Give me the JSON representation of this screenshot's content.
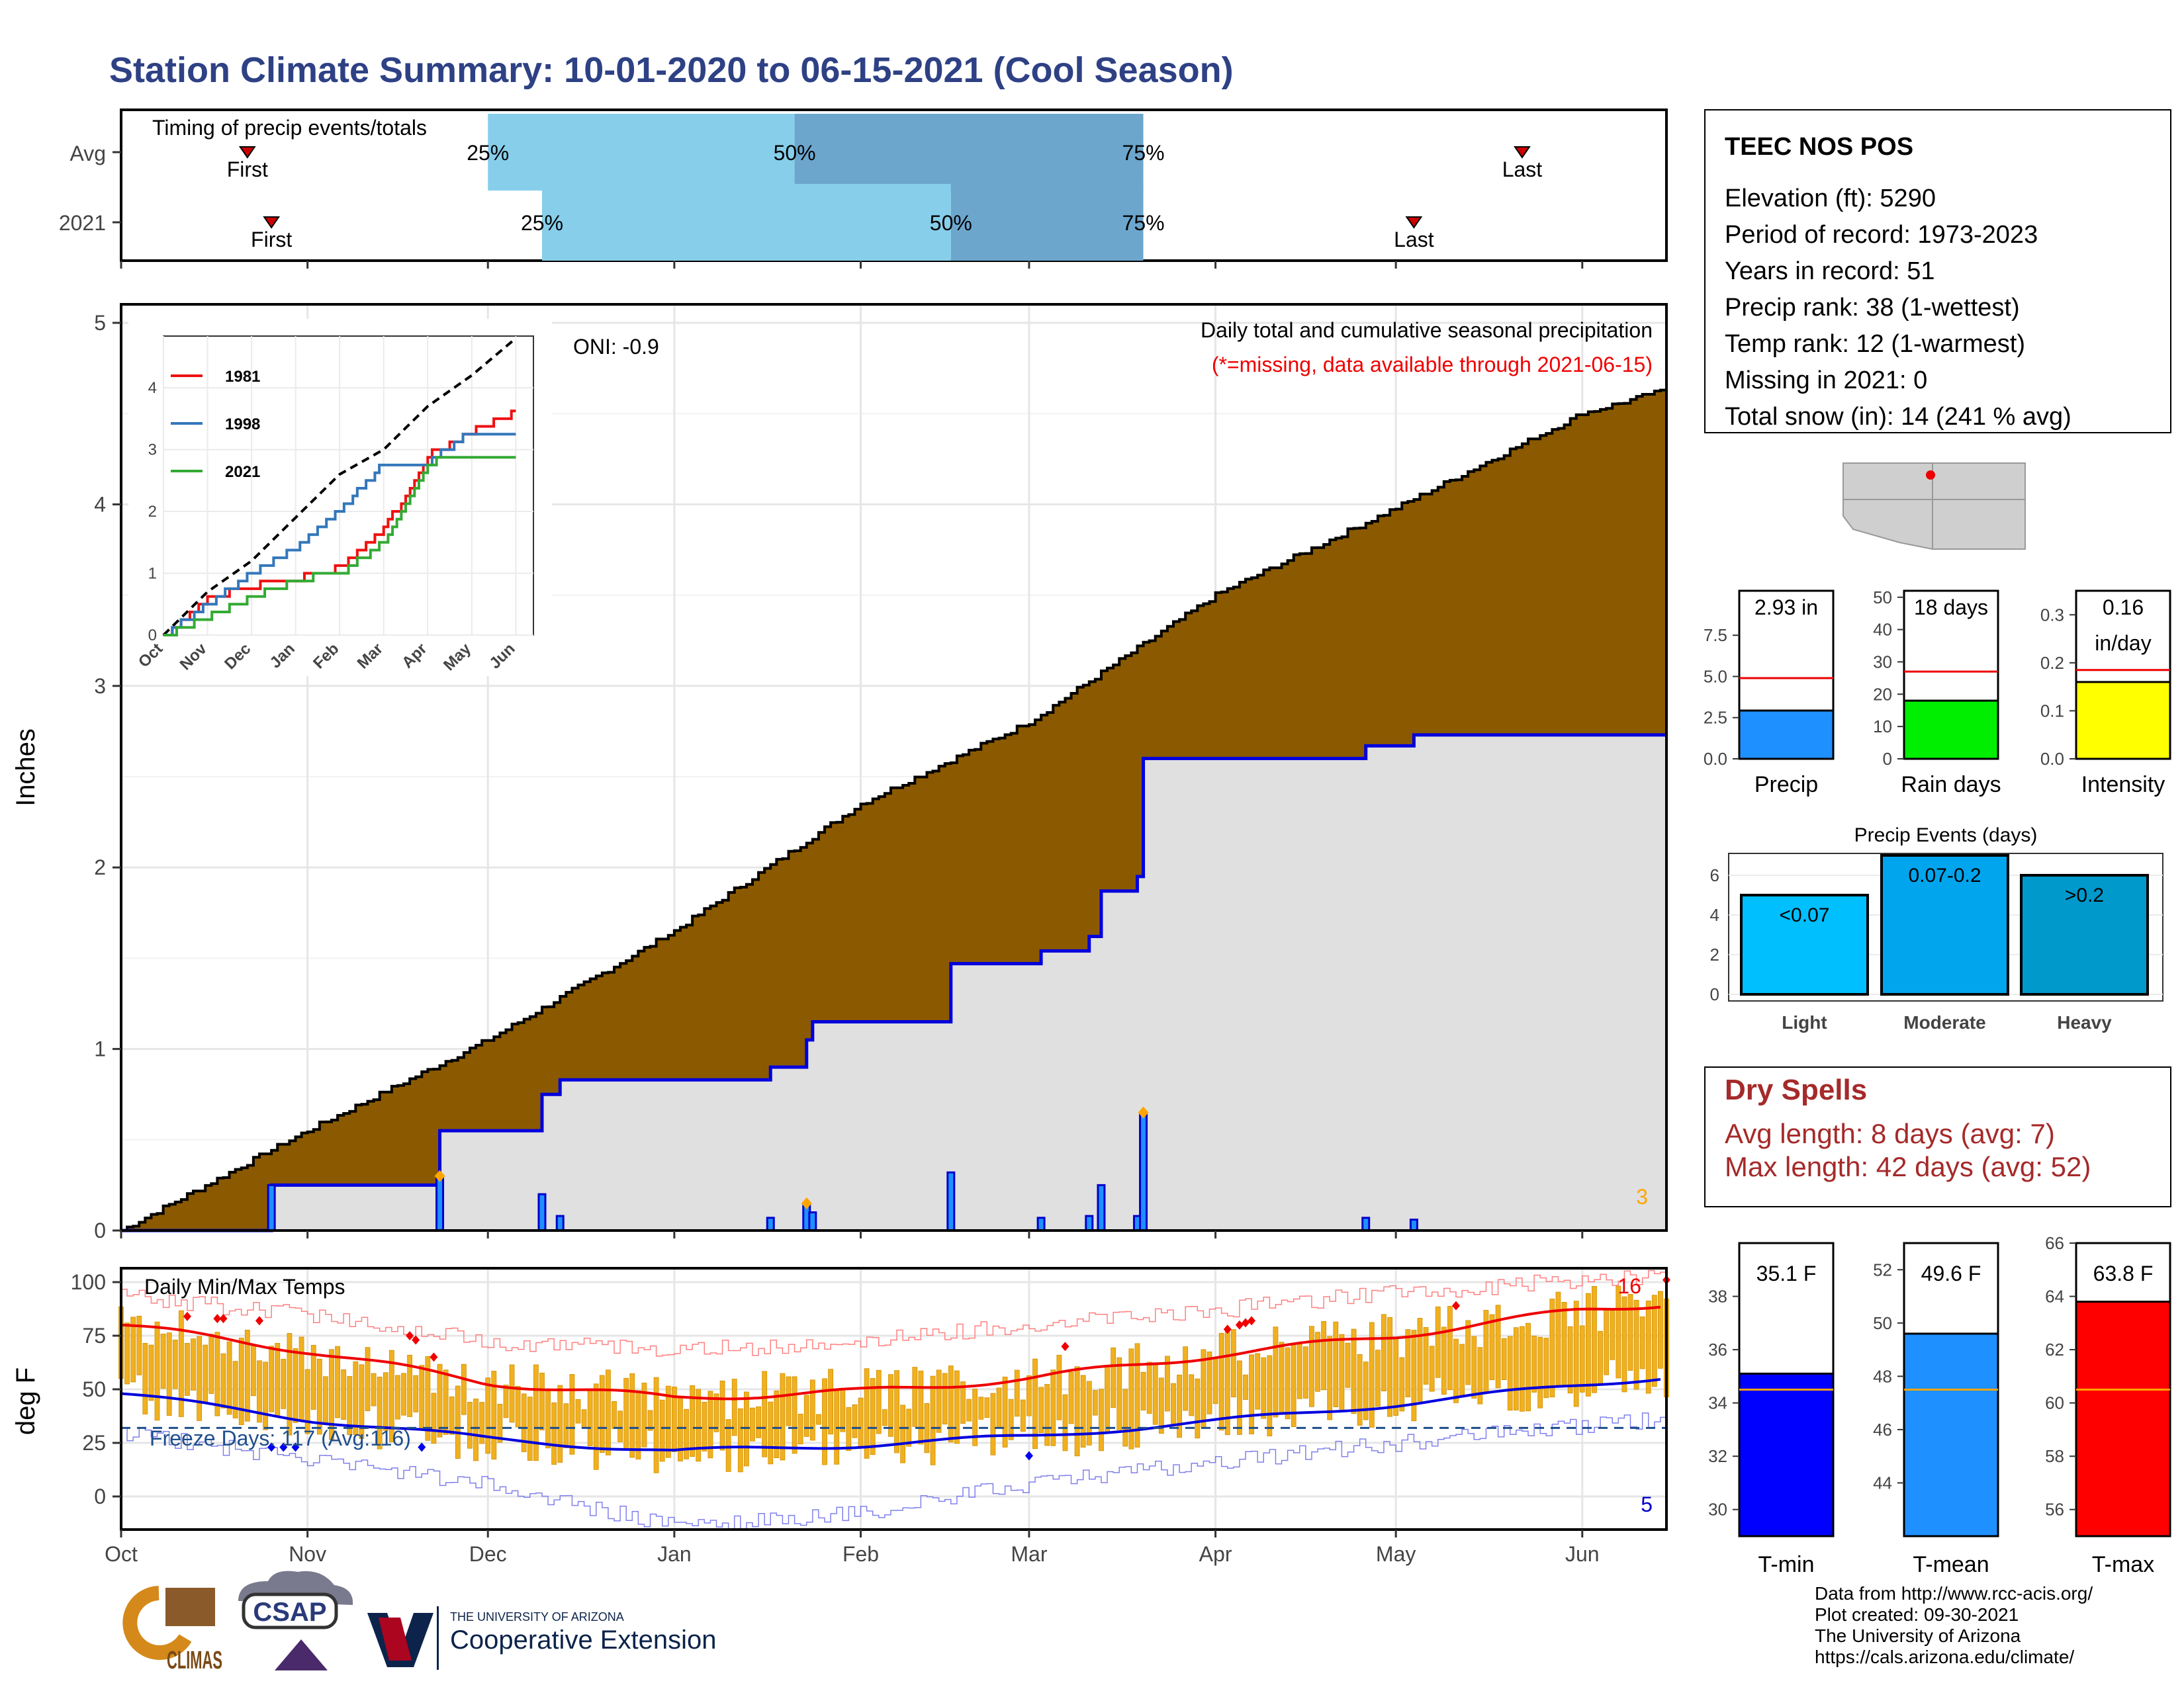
{
  "title": "Station Climate Summary: 10-01-2020 to 06-15-2021 (Cool Season)",
  "timing": {
    "label": "Timing of precip events/totals",
    "rows": [
      {
        "name": "Avg",
        "first_date": "2020-10-22",
        "p25_date": "2020-12-01",
        "p50_date": "2021-01-21",
        "p75_date": "2021-03-20",
        "last_date": "2021-05-22"
      },
      {
        "name": "2021",
        "first_date": "2020-10-26",
        "p25_date": "2020-12-10",
        "p50_date": "2021-02-16",
        "p75_date": "2021-03-20",
        "last_date": "2021-05-04"
      }
    ],
    "first_label": "First",
    "last_label": "Last",
    "p25_label": "25%",
    "p50_label": "50%",
    "p75_label": "75%"
  },
  "station": {
    "name": "TEEC NOS POS",
    "lines": [
      "Elevation (ft): 5290",
      "Period of record: 1973-2023",
      "Years in record: 51",
      "Precip rank: 38 (1-wettest)",
      "Temp rank: 12 (1-warmest)",
      "Missing in 2021: 0",
      "Total snow (in): 14 (241 % avg)"
    ]
  },
  "precip_panel": {
    "ylabel": "Inches",
    "subtitle": "Daily total and cumulative seasonal precipitation",
    "missing_note": "(*=missing, data available through 2021-06-15)",
    "oni": "ONI: -0.9",
    "corner_count": "3",
    "yticks": [
      "0",
      "1",
      "2",
      "3",
      "4",
      "5"
    ],
    "months": [
      "Oct",
      "Nov",
      "Dec",
      "Jan",
      "Feb",
      "Mar",
      "Apr",
      "May",
      "Jun"
    ]
  },
  "inset": {
    "yticks": [
      "0",
      "1",
      "2",
      "3",
      "4"
    ],
    "months": [
      "Oct",
      "Nov",
      "Dec",
      "Jan",
      "Feb",
      "Mar",
      "Apr",
      "May",
      "Jun"
    ],
    "legend": [
      {
        "name": "1981",
        "color": "#ee1111"
      },
      {
        "name": "1998",
        "color": "#3377bb"
      },
      {
        "name": "2021",
        "color": "#33aa33"
      }
    ]
  },
  "temp_panel": {
    "ylabel": "deg F",
    "label": "Daily Min/Max Temps",
    "freeze_label": "Freeze Days: 117 (Avg:116)",
    "top_count": "16",
    "bottom_count": "5",
    "yticks": [
      "0",
      "25",
      "50",
      "75",
      "100"
    ]
  },
  "summary_bars": [
    {
      "label": "Precip",
      "value_text": "2.93 in",
      "value": 2.93,
      "avg": 4.9,
      "ymax": 10.2,
      "yticks": [
        "0.0",
        "2.5",
        "5.0",
        "7.5"
      ],
      "tickvals": [
        0,
        2.5,
        5,
        7.5
      ],
      "color": "#1e90ff"
    },
    {
      "label": "Rain days",
      "value_text": "18 days",
      "value": 18,
      "avg": 27,
      "ymax": 52,
      "yticks": [
        "0",
        "10",
        "20",
        "30",
        "40",
        "50"
      ],
      "tickvals": [
        0,
        10,
        20,
        30,
        40,
        50
      ],
      "color": "#00ee00"
    },
    {
      "label": "Intensity",
      "value_text": "0.16",
      "value_text2": "in/day",
      "value": 0.16,
      "avg": 0.185,
      "ymax": 0.35,
      "yticks": [
        "0.0",
        "0.1",
        "0.2",
        "0.3"
      ],
      "tickvals": [
        0,
        0.1,
        0.2,
        0.3
      ],
      "color": "#ffff00"
    }
  ],
  "events": {
    "title": "Precip Events (days)",
    "bars": [
      {
        "label": "Light",
        "inner": "<0.07",
        "value": 5,
        "color": "#00bfff"
      },
      {
        "label": "Moderate",
        "inner": "0.07-0.2",
        "value": 7,
        "color": "#00a5ee"
      },
      {
        "label": "Heavy",
        "inner": ">0.2",
        "value": 6,
        "color": "#0099cc"
      }
    ],
    "yticks": [
      "0",
      "2",
      "4",
      "6"
    ]
  },
  "dry_spells": {
    "title": "Dry Spells",
    "avg_line": "Avg length: 8 days (avg: 7)",
    "max_line": "Max length: 42 days (avg: 52)"
  },
  "temp_bars": [
    {
      "label": "T-min",
      "value_text": "35.1 F",
      "value": 35.1,
      "avg": 34.5,
      "ymin": 29,
      "ymax": 40,
      "yticks": [
        "30",
        "32",
        "34",
        "36",
        "38"
      ],
      "tickvals": [
        30,
        32,
        34,
        36,
        38
      ],
      "color": "#0000ff"
    },
    {
      "label": "T-mean",
      "value_text": "49.6 F",
      "value": 49.6,
      "avg": 47.5,
      "ymin": 42,
      "ymax": 53,
      "yticks": [
        "44",
        "46",
        "48",
        "50",
        "52"
      ],
      "tickvals": [
        44,
        46,
        48,
        50,
        52
      ],
      "color": "#1e90ff"
    },
    {
      "label": "T-max",
      "value_text": "63.8 F",
      "value": 63.8,
      "avg": 60.5,
      "ymin": 55,
      "ymax": 66,
      "yticks": [
        "56",
        "58",
        "60",
        "62",
        "64",
        "66"
      ],
      "tickvals": [
        56,
        58,
        60,
        62,
        64,
        66
      ],
      "color": "#ff0000"
    }
  ],
  "footer": {
    "lines": [
      "Data from http://www.rcc-acis.org/",
      "Plot created: 09-30-2021",
      "The University of Arizona",
      "https://cals.arizona.edu/climate/"
    ],
    "logo1": "CLIMAS",
    "logo2": "CSAP",
    "ua_small": "THE UNIVERSITY OF ARIZONA",
    "ua_big": "Cooperative Extension"
  },
  "chart_data": [
    {
      "type": "area",
      "title": "Daily total and cumulative seasonal precipitation",
      "ylabel": "Inches",
      "ylim": [
        0,
        5
      ],
      "x": [
        "2020-10-01",
        "2020-11-01",
        "2020-12-01",
        "2021-01-01",
        "2021-02-01",
        "2021-03-01",
        "2021-04-01",
        "2021-05-01",
        "2021-06-01",
        "2021-06-15"
      ],
      "series": [
        {
          "name": "avg_cumulative",
          "values": [
            0.0,
            0.55,
            1.05,
            1.65,
            2.35,
            2.8,
            3.5,
            3.98,
            4.5,
            4.63
          ]
        },
        {
          "name": "2021_cumulative",
          "values": [
            0.0,
            0.25,
            0.55,
            0.85,
            1.05,
            1.53,
            2.8,
            2.88,
            2.93,
            2.93
          ]
        }
      ],
      "daily_2021": [
        {
          "date": "2020-10-26",
          "value": 0.25
        },
        {
          "date": "2020-11-23",
          "value": 0.3
        },
        {
          "date": "2020-12-10",
          "value": 0.2
        },
        {
          "date": "2020-12-13",
          "value": 0.08
        },
        {
          "date": "2021-01-17",
          "value": 0.07
        },
        {
          "date": "2021-01-23",
          "value": 0.15
        },
        {
          "date": "2021-01-24",
          "value": 0.1
        },
        {
          "date": "2021-02-16",
          "value": 0.32
        },
        {
          "date": "2021-03-03",
          "value": 0.07
        },
        {
          "date": "2021-03-11",
          "value": 0.08
        },
        {
          "date": "2021-03-13",
          "value": 0.25
        },
        {
          "date": "2021-03-19",
          "value": 0.08
        },
        {
          "date": "2021-03-20",
          "value": 0.65
        },
        {
          "date": "2021-04-26",
          "value": 0.07
        },
        {
          "date": "2021-05-04",
          "value": 0.06
        }
      ]
    },
    {
      "type": "line",
      "title": "",
      "ylim": [
        0,
        5
      ],
      "categories": [
        "Oct",
        "Nov",
        "Dec",
        "Jan",
        "Feb",
        "Mar",
        "Apr",
        "May",
        "Jun"
      ],
      "series": [
        {
          "name": "avg",
          "values": [
            0.0,
            0.7,
            1.2,
            1.9,
            2.6,
            3.0,
            3.7,
            4.2,
            4.8
          ]
        },
        {
          "name": "1981",
          "values": [
            0.0,
            0.6,
            0.8,
            0.9,
            1.1,
            1.7,
            2.9,
            3.3,
            3.6
          ]
        },
        {
          "name": "1998",
          "values": [
            0.0,
            0.5,
            1.0,
            1.4,
            2.0,
            2.8,
            2.8,
            3.3,
            3.3
          ]
        },
        {
          "name": "2021",
          "values": [
            0.0,
            0.3,
            0.6,
            0.9,
            1.0,
            1.5,
            2.8,
            2.9,
            2.9
          ]
        }
      ]
    },
    {
      "type": "bar",
      "title": "Daily Min/Max Temps",
      "ylabel": "deg F",
      "ylim": [
        -20,
        105
      ],
      "x": [
        "2020-10-01",
        "2020-11-01",
        "2020-12-01",
        "2021-01-01",
        "2021-02-01",
        "2021-03-01",
        "2021-04-01",
        "2021-05-01",
        "2021-06-01",
        "2021-06-15"
      ],
      "series": [
        {
          "name": "avg_max",
          "values": [
            80,
            68,
            53,
            46,
            49,
            55,
            66,
            75,
            87,
            90
          ]
        },
        {
          "name": "avg_min",
          "values": [
            48,
            36,
            27,
            21,
            24,
            28,
            35,
            43,
            52,
            56
          ]
        },
        {
          "name": "record_max",
          "values": [
            93,
            85,
            72,
            68,
            72,
            80,
            87,
            95,
            101,
            103
          ]
        },
        {
          "name": "record_min",
          "values": [
            30,
            17,
            5,
            -14,
            -8,
            6,
            16,
            25,
            33,
            36
          ]
        }
      ],
      "freeze_threshold": 32
    }
  ]
}
